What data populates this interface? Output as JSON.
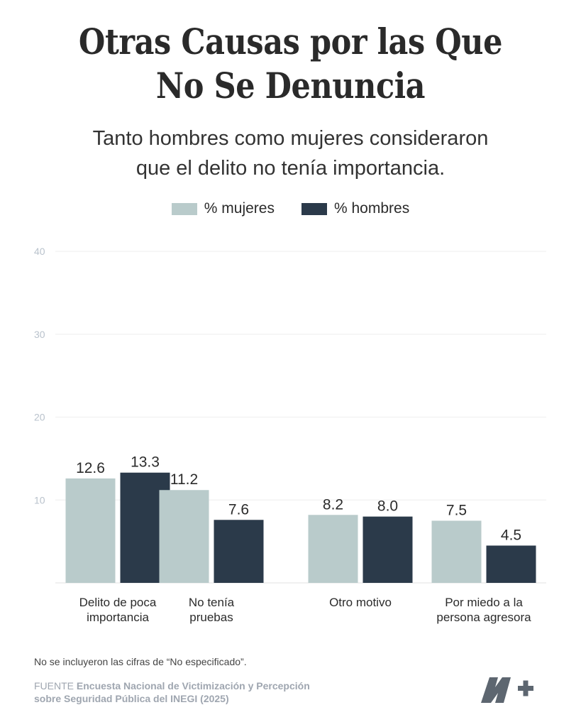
{
  "title_line1": "Otras Causas por las Que",
  "title_line2": "No Se Denuncia",
  "subtitle_line1": "Tanto hombres como mujeres consideraron",
  "subtitle_line2": "que el delito no tenía importancia.",
  "legend": {
    "women": "% mujeres",
    "men": "% hombres"
  },
  "colors": {
    "women": "#b9cbcb",
    "men": "#2b3a4a",
    "grid": "#eeeeee",
    "tick": "#b9c2cc"
  },
  "chart_data": {
    "type": "bar",
    "categories": [
      [
        "Delito de poca",
        "importancia"
      ],
      [
        "No tenía",
        "pruebas"
      ],
      [
        "Otro motivo"
      ],
      [
        "Por miedo a la",
        "persona agresora"
      ]
    ],
    "series": [
      {
        "name": "% mujeres",
        "values": [
          12.6,
          11.2,
          8.2,
          7.5
        ]
      },
      {
        "name": "% hombres",
        "values": [
          13.3,
          7.6,
          8.0,
          4.5
        ]
      }
    ],
    "yticks": [
      10,
      20,
      30,
      40
    ],
    "ylim": [
      0,
      40
    ],
    "grid": true,
    "legend_position": "top-center"
  },
  "note": "No se incluyeron las cifras de “No especificado”.",
  "source_label": "FUENTE",
  "source_text_line1": "Encuesta Nacional de Victimización y Percepción",
  "source_text_line2": "sobre Seguridad Pública del INEGI (2025)",
  "logo_name": "n-plus-logo"
}
